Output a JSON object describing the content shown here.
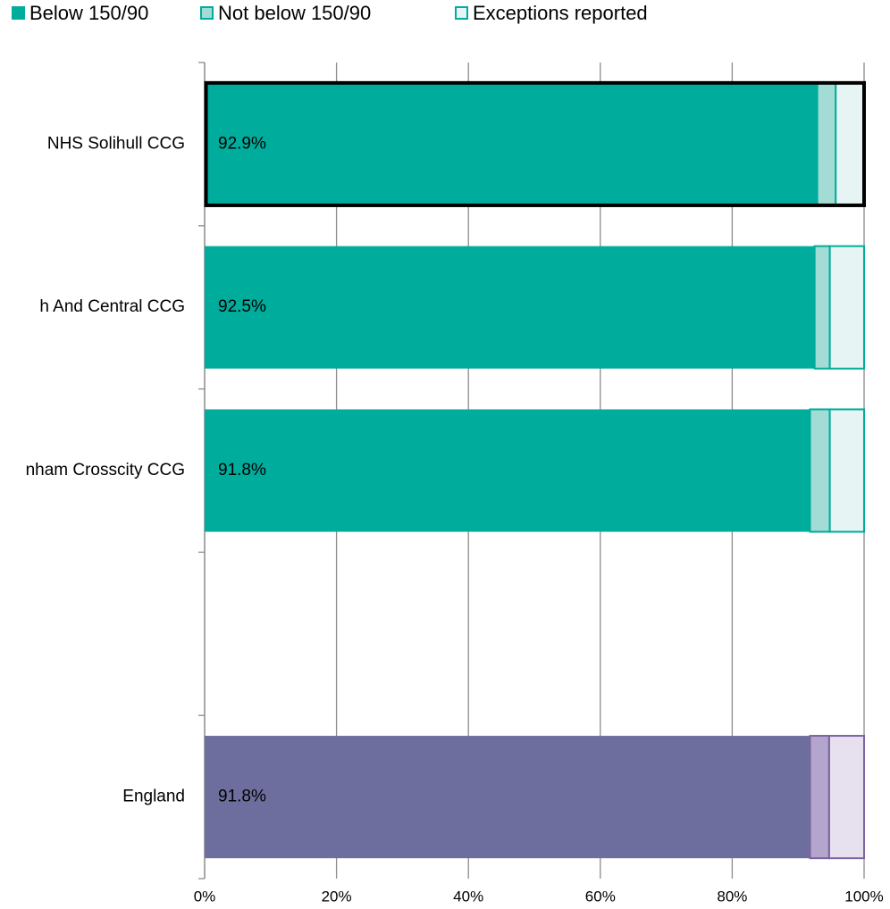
{
  "chart_data": {
    "type": "stacked_barh",
    "categories": [
      "NHS Solihull CCG",
      "h And Central CCG",
      "nham Crosscity CCG",
      null,
      "England"
    ],
    "series": [
      {
        "name": "Below 150/90",
        "color": "#00ac9c",
        "point_colors": [
          "#00ac9c",
          "#00ac9c",
          "#00ac9c",
          null,
          "#6e6e9e"
        ],
        "values": [
          92.9,
          92.5,
          91.8,
          null,
          91.8
        ],
        "value_labels": [
          "92.9%",
          "92.5%",
          "91.8%",
          null,
          "91.8%"
        ]
      },
      {
        "name": "Not below 150/90",
        "color": "#a3dcd5",
        "point_colors": [
          "#a3dcd5",
          "#a3dcd5",
          "#a3dcd5",
          null,
          "#b3a5cb"
        ],
        "values": [
          2.8,
          2.3,
          3.0,
          null,
          2.9
        ]
      },
      {
        "name": "Exceptions reported",
        "color": "#e6f5f3",
        "point_colors": [
          "#e6f5f3",
          "#e6f5f3",
          "#e6f5f3",
          null,
          "#e6e0ef"
        ],
        "values": [
          4.3,
          5.2,
          5.2,
          null,
          5.3
        ]
      }
    ],
    "edge_colors": [
      "#00ac9c",
      "#00ac9c",
      "#00ac9c",
      null,
      "#7b62a0"
    ],
    "highlight_index": 0,
    "xlim": [
      0,
      100
    ],
    "xticks": [
      {
        "value": 0,
        "label": "0%"
      },
      {
        "value": 20,
        "label": "20%"
      },
      {
        "value": 40,
        "label": "40%"
      },
      {
        "value": 60,
        "label": "60%"
      },
      {
        "value": 80,
        "label": "80%"
      },
      {
        "value": 100,
        "label": "100%"
      }
    ],
    "grid": true,
    "legend": "top"
  }
}
